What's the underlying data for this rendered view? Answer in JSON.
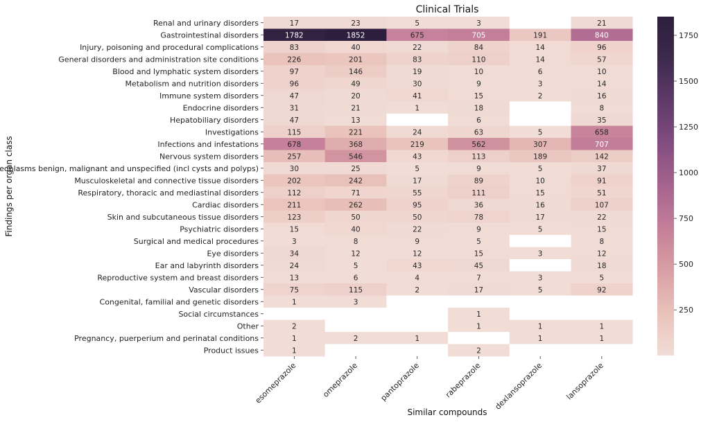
{
  "chart_data": {
    "type": "heatmap",
    "title": "Clinical Trials",
    "xlabel": "Similar compounds",
    "ylabel": "Findings per organ class",
    "columns": [
      "esomeprazole",
      "omeprazole",
      "pantoprazole",
      "rabeprazole",
      "dexlansoprazole",
      "lansoprazole"
    ],
    "rows": [
      "Renal and urinary disorders",
      "Gastrointestinal disorders",
      "Injury, poisoning and procedural complications",
      "General disorders and administration site conditions",
      "Blood and lymphatic system disorders",
      "Metabolism and nutrition disorders",
      "Immune system disorders",
      "Endocrine disorders",
      "Hepatobiliary disorders",
      "Investigations",
      "Infections and infestations",
      "Nervous system disorders",
      "Neoplasms benign, malignant and unspecified (incl cysts and polyps)",
      "Musculoskeletal and connective tissue disorders",
      "Respiratory, thoracic and mediastinal disorders",
      "Cardiac disorders",
      "Skin and subcutaneous tissue disorders",
      "Psychiatric disorders",
      "Surgical and medical procedures",
      "Eye disorders",
      "Ear and labyrinth disorders",
      "Reproductive system and breast disorders",
      "Vascular disorders",
      "Congenital, familial and genetic disorders",
      "Social circumstances",
      "Other",
      "Pregnancy, puerperium and perinatal conditions",
      "Product issues"
    ],
    "values": [
      [
        17,
        23,
        5,
        3,
        null,
        21
      ],
      [
        1782,
        1852,
        675,
        705,
        191,
        840
      ],
      [
        83,
        40,
        22,
        84,
        14,
        96
      ],
      [
        226,
        201,
        83,
        110,
        14,
        57
      ],
      [
        97,
        146,
        19,
        10,
        6,
        10
      ],
      [
        96,
        49,
        30,
        9,
        3,
        14
      ],
      [
        47,
        20,
        41,
        15,
        2,
        16
      ],
      [
        31,
        21,
        1,
        18,
        null,
        8
      ],
      [
        47,
        13,
        null,
        6,
        null,
        35
      ],
      [
        115,
        221,
        24,
        63,
        5,
        658
      ],
      [
        678,
        368,
        219,
        562,
        307,
        707
      ],
      [
        257,
        546,
        43,
        113,
        189,
        142
      ],
      [
        30,
        25,
        5,
        9,
        5,
        37
      ],
      [
        202,
        242,
        17,
        89,
        10,
        91
      ],
      [
        112,
        71,
        55,
        111,
        15,
        51
      ],
      [
        211,
        262,
        95,
        36,
        16,
        107
      ],
      [
        123,
        50,
        50,
        78,
        17,
        22
      ],
      [
        15,
        40,
        22,
        9,
        5,
        15
      ],
      [
        3,
        8,
        9,
        5,
        null,
        8
      ],
      [
        34,
        12,
        12,
        15,
        3,
        12
      ],
      [
        24,
        5,
        43,
        45,
        null,
        18
      ],
      [
        13,
        6,
        4,
        7,
        3,
        5
      ],
      [
        75,
        115,
        2,
        17,
        5,
        92
      ],
      [
        1,
        3,
        null,
        null,
        null,
        null
      ],
      [
        null,
        null,
        null,
        1,
        null,
        null
      ],
      [
        2,
        null,
        null,
        1,
        1,
        1
      ],
      [
        1,
        2,
        1,
        null,
        1,
        1
      ],
      [
        1,
        null,
        null,
        2,
        null,
        null
      ]
    ],
    "vmin": 1,
    "vmax": 1852,
    "colorbar_ticks": [
      250,
      500,
      750,
      1000,
      1250,
      1500,
      1750
    ],
    "colormap": [
      "#f1ddd6",
      "#e9c2bb",
      "#d99fa4",
      "#c47f99",
      "#a6648e",
      "#834d80",
      "#5f3a69",
      "#3d2a4c",
      "#2d1e3e"
    ],
    "null_color": "#ffffff",
    "grid": false,
    "legend": "colorbar-right"
  }
}
